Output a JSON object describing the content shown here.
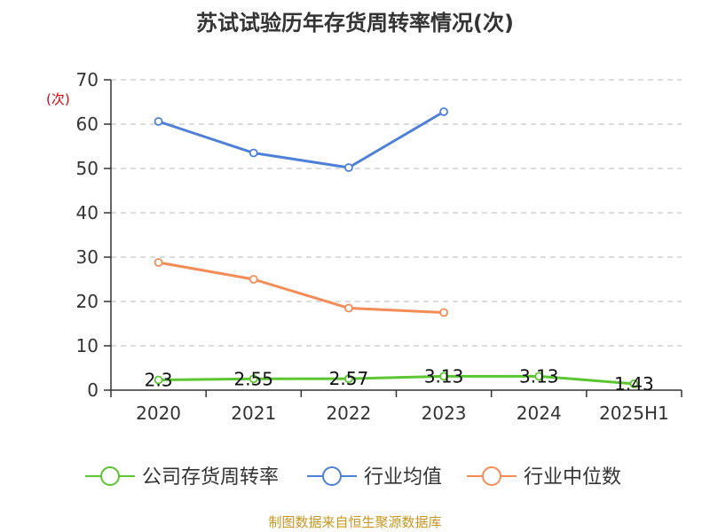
{
  "title": "苏试试验历年存货周转率情况(次)",
  "footer": "制图数据来自恒生聚源数据库",
  "chart_data": {
    "type": "line",
    "title": "苏试试验历年存货周转率情况(次)",
    "unit": "(次)",
    "categories": [
      "2020",
      "2021",
      "2022",
      "2023",
      "2024",
      "2025H1"
    ],
    "ylim": [
      0,
      70
    ],
    "yticks": [
      0,
      10,
      20,
      30,
      40,
      50,
      60,
      70
    ],
    "grid": true,
    "legend_position": "bottom",
    "series": [
      {
        "name": "公司存货周转率",
        "color": "#5cc632",
        "values": [
          2.3,
          2.55,
          2.57,
          3.13,
          3.13,
          1.43
        ],
        "labels": [
          "2.3",
          "2.55",
          "2.57",
          "3.13",
          "3.13",
          "1.43"
        ]
      },
      {
        "name": "行业均值",
        "color": "#4e80d8",
        "values": [
          60.6,
          53.5,
          50.2,
          62.8,
          null,
          null
        ]
      },
      {
        "name": "行业中位数",
        "color": "#f58c56",
        "values": [
          28.8,
          25.0,
          18.5,
          17.5,
          null,
          null
        ]
      }
    ]
  }
}
